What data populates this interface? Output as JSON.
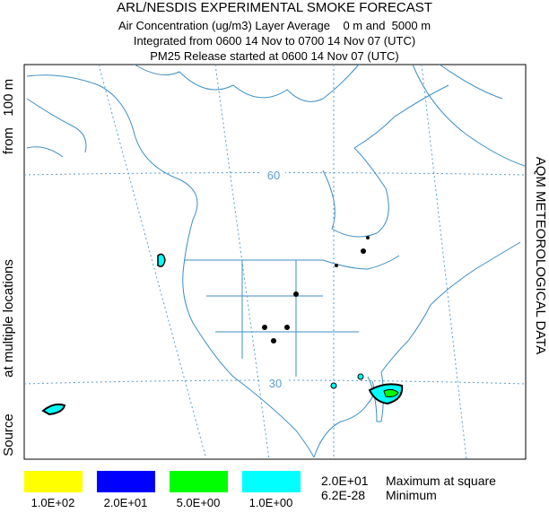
{
  "header": {
    "lines": [
      "ARL/NESDIS EXPERIMENTAL SMOKE FORECAST",
      "Air Concentration (ug/m3) Layer Average    0 m and  5000 m",
      "Integrated from 0600 14 Nov to 0700 14 Nov 07 (UTC)",
      "PM25 Release started at 0600 14 Nov 07 (UTC)"
    ]
  },
  "left_labels": [
    "Source",
    "at multiple locations",
    "from   100 m"
  ],
  "right_label": "AQM METEOROLOGICAL DATA",
  "grid_labels": [
    "60",
    "30"
  ],
  "legend": {
    "items": [
      {
        "label": "1.0E+02",
        "color": "#ffff00"
      },
      {
        "label": "2.0E+01",
        "color": "#0000ff"
      },
      {
        "label": "5.0E+00",
        "color": "#00ff00"
      },
      {
        "label": "1.0E+00",
        "color": "#00ffff"
      }
    ]
  },
  "stats": [
    {
      "value": "2.0E+01",
      "text": "Maximum at square"
    },
    {
      "value": "6.2E-28",
      "text": "Minimum"
    }
  ]
}
